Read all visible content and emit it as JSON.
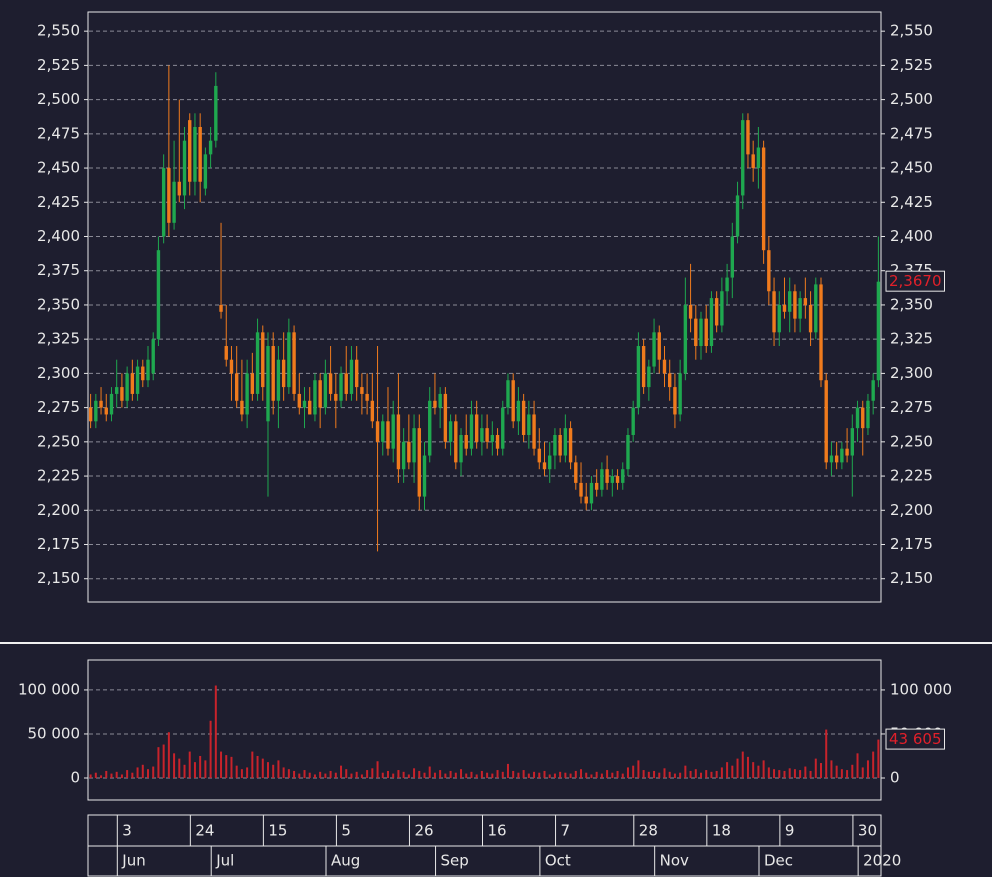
{
  "chart_data": {
    "type": "candlestick",
    "categories": [
      null,
      null,
      null,
      null,
      null,
      null,
      "3",
      null,
      null,
      null,
      null,
      null,
      null,
      null,
      null,
      null,
      null,
      null,
      null,
      null,
      "24",
      null,
      null,
      null,
      null,
      null,
      null,
      null,
      null,
      null,
      null,
      null,
      null,
      null,
      "15",
      null,
      null,
      null,
      null,
      null,
      null,
      null,
      null,
      null,
      null,
      null,
      null,
      null,
      "5",
      null,
      null,
      null,
      null,
      null,
      null,
      null,
      null,
      null,
      null,
      null,
      null,
      null,
      "26",
      null,
      null,
      null,
      null,
      null,
      null,
      null,
      null,
      null,
      null,
      null,
      null,
      null,
      "16",
      null,
      null,
      null,
      null,
      null,
      null,
      null,
      null,
      null,
      null,
      null,
      null,
      null,
      "7",
      null,
      null,
      null,
      null,
      null,
      null,
      null,
      null,
      null,
      null,
      null,
      null,
      null,
      null,
      "28",
      null,
      null,
      null,
      null,
      null,
      null,
      null,
      null,
      null,
      null,
      null,
      null,
      null,
      "18",
      null,
      null,
      null,
      null,
      null,
      null,
      null,
      null,
      null,
      null,
      null,
      null,
      null,
      "9",
      null,
      null,
      null,
      null,
      null,
      null,
      null,
      null,
      null,
      null,
      null,
      null,
      null,
      "30",
      null,
      null,
      null,
      null
    ],
    "months": [
      null,
      null,
      null,
      null,
      null,
      null,
      "Jun",
      null,
      null,
      null,
      null,
      null,
      null,
      null,
      null,
      null,
      null,
      null,
      null,
      null,
      null,
      null,
      null,
      null,
      "Jul",
      null,
      null,
      null,
      null,
      null,
      null,
      null,
      null,
      null,
      null,
      null,
      null,
      null,
      null,
      null,
      null,
      null,
      null,
      null,
      null,
      null,
      "Aug",
      null,
      null,
      null,
      null,
      null,
      null,
      null,
      null,
      null,
      null,
      null,
      null,
      null,
      null,
      null,
      null,
      null,
      null,
      null,
      null,
      "Sep",
      null,
      null,
      null,
      null,
      null,
      null,
      null,
      null,
      null,
      null,
      null,
      null,
      null,
      null,
      null,
      null,
      null,
      null,
      null,
      "Oct",
      null,
      null,
      null,
      null,
      null,
      null,
      null,
      null,
      null,
      null,
      null,
      null,
      null,
      null,
      null,
      null,
      null,
      null,
      null,
      null,
      null,
      "Nov",
      null,
      null,
      null,
      null,
      null,
      null,
      null,
      null,
      null,
      null,
      null,
      null,
      null,
      null,
      null,
      null,
      null,
      null,
      null,
      "Dec",
      null,
      null,
      null,
      null,
      null,
      null,
      null,
      null,
      null,
      null,
      null,
      null,
      null,
      null,
      null,
      null,
      null,
      null,
      "2020",
      null,
      null,
      null
    ],
    "open": [
      2.275,
      2.265,
      2.28,
      2.275,
      2.27,
      2.285,
      2.29,
      2.28,
      2.3,
      2.285,
      2.305,
      2.295,
      2.3,
      2.325,
      2.4,
      2.45,
      2.41,
      2.44,
      2.43,
      2.485,
      2.44,
      2.48,
      2.435,
      2.46,
      2.47,
      2.35,
      2.32,
      2.31,
      2.3,
      2.28,
      2.27,
      2.3,
      2.285,
      2.33,
      2.265,
      2.32,
      2.28,
      2.31,
      2.29,
      2.33,
      2.285,
      2.275,
      2.28,
      2.27,
      2.295,
      2.275,
      2.3,
      2.285,
      2.28,
      2.3,
      2.285,
      2.31,
      2.29,
      2.285,
      2.28,
      2.265,
      2.25,
      2.265,
      2.245,
      2.27,
      2.23,
      2.25,
      2.235,
      2.26,
      2.21,
      2.24,
      2.28,
      2.275,
      2.285,
      2.25,
      2.265,
      2.235,
      2.255,
      2.245,
      2.27,
      2.25,
      2.26,
      2.25,
      2.255,
      2.245,
      2.275,
      2.295,
      2.265,
      2.28,
      2.255,
      2.27,
      2.245,
      2.235,
      2.23,
      2.24,
      2.255,
      2.24,
      2.26,
      2.235,
      2.22,
      2.21,
      2.205,
      2.22,
      2.215,
      2.23,
      2.22,
      2.225,
      2.22,
      2.23,
      2.255,
      2.275,
      2.32,
      2.29,
      2.305,
      2.33,
      2.31,
      2.3,
      2.29,
      2.27,
      2.3,
      2.35,
      2.34,
      2.32,
      2.34,
      2.32,
      2.355,
      2.335,
      2.36,
      2.37,
      2.4,
      2.43,
      2.485,
      2.46,
      2.45,
      2.465,
      2.39,
      2.36,
      2.33,
      2.35,
      2.345,
      2.36,
      2.34,
      2.355,
      2.35,
      2.33,
      2.365,
      2.295,
      2.235,
      2.24,
      2.235,
      2.245,
      2.24,
      2.26,
      2.275,
      2.26,
      2.28,
      2.295
    ],
    "high": [
      2.285,
      2.285,
      2.29,
      2.285,
      2.29,
      2.31,
      2.3,
      2.305,
      2.31,
      2.31,
      2.31,
      2.32,
      2.33,
      2.4,
      2.46,
      2.525,
      2.47,
      2.5,
      2.48,
      2.49,
      2.49,
      2.49,
      2.465,
      2.48,
      2.52,
      2.41,
      2.35,
      2.32,
      2.32,
      2.31,
      2.31,
      2.315,
      2.34,
      2.335,
      2.33,
      2.33,
      2.32,
      2.33,
      2.34,
      2.335,
      2.3,
      2.29,
      2.29,
      2.3,
      2.3,
      2.31,
      2.32,
      2.3,
      2.305,
      2.32,
      2.32,
      2.32,
      2.3,
      2.3,
      2.3,
      2.32,
      2.27,
      2.29,
      2.28,
      2.3,
      2.26,
      2.27,
      2.27,
      2.27,
      2.25,
      2.29,
      2.3,
      2.29,
      2.29,
      2.27,
      2.27,
      2.26,
      2.27,
      2.28,
      2.28,
      2.27,
      2.27,
      2.265,
      2.26,
      2.28,
      2.3,
      2.3,
      2.29,
      2.285,
      2.28,
      2.28,
      2.26,
      2.25,
      2.25,
      2.26,
      2.26,
      2.27,
      2.265,
      2.24,
      2.235,
      2.22,
      2.225,
      2.23,
      2.235,
      2.24,
      2.23,
      2.23,
      2.235,
      2.26,
      2.28,
      2.33,
      2.325,
      2.31,
      2.34,
      2.335,
      2.32,
      2.31,
      2.3,
      2.31,
      2.37,
      2.38,
      2.35,
      2.345,
      2.35,
      2.36,
      2.36,
      2.37,
      2.38,
      2.41,
      2.44,
      2.49,
      2.49,
      2.47,
      2.48,
      2.47,
      2.4,
      2.37,
      2.36,
      2.37,
      2.37,
      2.365,
      2.36,
      2.37,
      2.36,
      2.37,
      2.37,
      2.3,
      2.25,
      2.25,
      2.25,
      2.26,
      2.27,
      2.28,
      2.28,
      2.285,
      2.3,
      2.4
    ],
    "low": [
      2.26,
      2.26,
      2.27,
      2.265,
      2.265,
      2.275,
      2.275,
      2.275,
      2.28,
      2.28,
      2.29,
      2.29,
      2.295,
      2.32,
      2.395,
      2.4,
      2.405,
      2.425,
      2.42,
      2.43,
      2.43,
      2.425,
      2.43,
      2.45,
      2.465,
      2.34,
      2.305,
      2.28,
      2.275,
      2.265,
      2.26,
      2.28,
      2.28,
      2.28,
      2.21,
      2.27,
      2.26,
      2.28,
      2.285,
      2.28,
      2.27,
      2.26,
      2.27,
      2.265,
      2.26,
      2.27,
      2.28,
      2.26,
      2.275,
      2.28,
      2.28,
      2.28,
      2.27,
      2.27,
      2.26,
      2.17,
      2.24,
      2.24,
      2.235,
      2.22,
      2.22,
      2.23,
      2.22,
      2.2,
      2.2,
      2.235,
      2.27,
      2.26,
      2.245,
      2.24,
      2.23,
      2.225,
      2.24,
      2.24,
      2.245,
      2.24,
      2.245,
      2.24,
      2.24,
      2.24,
      2.27,
      2.26,
      2.255,
      2.25,
      2.245,
      2.24,
      2.23,
      2.225,
      2.22,
      2.23,
      2.235,
      2.235,
      2.23,
      2.215,
      2.205,
      2.2,
      2.2,
      2.21,
      2.21,
      2.215,
      2.21,
      2.215,
      2.215,
      2.225,
      2.25,
      2.27,
      2.285,
      2.28,
      2.3,
      2.3,
      2.29,
      2.28,
      2.26,
      2.265,
      2.295,
      2.33,
      2.31,
      2.31,
      2.315,
      2.315,
      2.33,
      2.33,
      2.35,
      2.355,
      2.395,
      2.42,
      2.45,
      2.44,
      2.435,
      2.38,
      2.35,
      2.32,
      2.32,
      2.34,
      2.33,
      2.33,
      2.33,
      2.34,
      2.32,
      2.325,
      2.29,
      2.23,
      2.225,
      2.23,
      2.23,
      2.235,
      2.21,
      2.25,
      2.24,
      2.255,
      2.27,
      2.29
    ],
    "close": [
      2.265,
      2.28,
      2.275,
      2.27,
      2.285,
      2.29,
      2.28,
      2.3,
      2.285,
      2.305,
      2.295,
      2.31,
      2.325,
      2.39,
      2.45,
      2.41,
      2.44,
      2.43,
      2.47,
      2.44,
      2.48,
      2.44,
      2.46,
      2.47,
      2.51,
      2.345,
      2.31,
      2.3,
      2.28,
      2.27,
      2.3,
      2.285,
      2.33,
      2.29,
      2.32,
      2.28,
      2.31,
      2.29,
      2.33,
      2.285,
      2.275,
      2.28,
      2.27,
      2.295,
      2.275,
      2.3,
      2.285,
      2.28,
      2.3,
      2.285,
      2.31,
      2.29,
      2.285,
      2.28,
      2.265,
      2.25,
      2.265,
      2.245,
      2.27,
      2.23,
      2.25,
      2.235,
      2.26,
      2.21,
      2.24,
      2.28,
      2.275,
      2.285,
      2.25,
      2.265,
      2.235,
      2.255,
      2.245,
      2.27,
      2.25,
      2.26,
      2.25,
      2.255,
      2.245,
      2.275,
      2.295,
      2.265,
      2.28,
      2.255,
      2.27,
      2.245,
      2.235,
      2.23,
      2.24,
      2.255,
      2.24,
      2.26,
      2.235,
      2.22,
      2.21,
      2.205,
      2.22,
      2.215,
      2.23,
      2.22,
      2.225,
      2.22,
      2.23,
      2.255,
      2.275,
      2.32,
      2.29,
      2.305,
      2.33,
      2.31,
      2.3,
      2.29,
      2.27,
      2.3,
      2.35,
      2.34,
      2.32,
      2.34,
      2.32,
      2.355,
      2.335,
      2.36,
      2.37,
      2.4,
      2.43,
      2.485,
      2.46,
      2.45,
      2.465,
      2.39,
      2.36,
      2.33,
      2.35,
      2.345,
      2.36,
      2.34,
      2.355,
      2.35,
      2.33,
      2.365,
      2.295,
      2.235,
      2.24,
      2.235,
      2.245,
      2.24,
      2.26,
      2.275,
      2.26,
      2.28,
      2.295,
      2.367
    ],
    "last_label": "2,3670",
    "up_color": "#1fa84f",
    "down_color": "#f07b1d",
    "grid": true,
    "ylim": [
      2.133,
      2.564
    ],
    "yticks": [
      {
        "value": 2.15,
        "label": "2,150"
      },
      {
        "value": 2.175,
        "label": "2,175"
      },
      {
        "value": 2.2,
        "label": "2,200"
      },
      {
        "value": 2.225,
        "label": "2,225"
      },
      {
        "value": 2.25,
        "label": "2,250"
      },
      {
        "value": 2.275,
        "label": "2,275"
      },
      {
        "value": 2.3,
        "label": "2,300"
      },
      {
        "value": 2.325,
        "label": "2,325"
      },
      {
        "value": 2.35,
        "label": "2,350"
      },
      {
        "value": 2.375,
        "label": "2,375"
      },
      {
        "value": 2.4,
        "label": "2,400"
      },
      {
        "value": 2.425,
        "label": "2,425"
      },
      {
        "value": 2.45,
        "label": "2,450"
      },
      {
        "value": 2.475,
        "label": "2,475"
      },
      {
        "value": 2.5,
        "label": "2,500"
      },
      {
        "value": 2.525,
        "label": "2,525"
      },
      {
        "value": 2.55,
        "label": "2,550"
      }
    ],
    "volume": {
      "values": [
        4000,
        6000,
        3000,
        8000,
        5000,
        7000,
        4000,
        9000,
        6000,
        12000,
        15000,
        10000,
        13000,
        35000,
        38000,
        52000,
        28000,
        22000,
        15000,
        30000,
        18000,
        25000,
        20000,
        65000,
        105000,
        30000,
        26000,
        24000,
        14000,
        10000,
        12000,
        30000,
        25000,
        22000,
        18000,
        15000,
        20000,
        12000,
        10000,
        8000,
        5000,
        9000,
        6000,
        4000,
        7000,
        5000,
        8000,
        6000,
        14000,
        10000,
        5000,
        7000,
        4000,
        9000,
        11000,
        19000,
        6000,
        8000,
        5000,
        9000,
        7000,
        4000,
        11000,
        8000,
        6000,
        13000,
        6000,
        9000,
        5000,
        8000,
        6000,
        10000,
        5000,
        7000,
        4000,
        8000,
        6000,
        5000,
        9000,
        7000,
        16000,
        8000,
        6000,
        9000,
        5000,
        7000,
        6000,
        8000,
        4000,
        5000,
        7000,
        6000,
        5000,
        8000,
        10000,
        6000,
        4000,
        7000,
        5000,
        9000,
        6000,
        8000,
        5000,
        12000,
        14000,
        20000,
        9000,
        7000,
        8000,
        6000,
        11000,
        7000,
        5000,
        6000,
        14000,
        8000,
        10000,
        6000,
        9000,
        7000,
        8000,
        12000,
        18000,
        14000,
        22000,
        30000,
        24000,
        18000,
        14000,
        20000,
        12000,
        10000,
        9000,
        8000,
        11000,
        10000,
        9000,
        13000,
        8000,
        22000,
        17000,
        55000,
        20000,
        14000,
        10000,
        9000,
        15000,
        28000,
        12000,
        20000,
        30000,
        43605
      ],
      "color": "#c8232b",
      "last_label": "43 605",
      "ylim": [
        -25000,
        134000
      ],
      "yticks": [
        0,
        {
          "value": 50000,
          "label": "50 000"
        },
        {
          "value": 100000,
          "label": "100 000"
        }
      ]
    }
  }
}
